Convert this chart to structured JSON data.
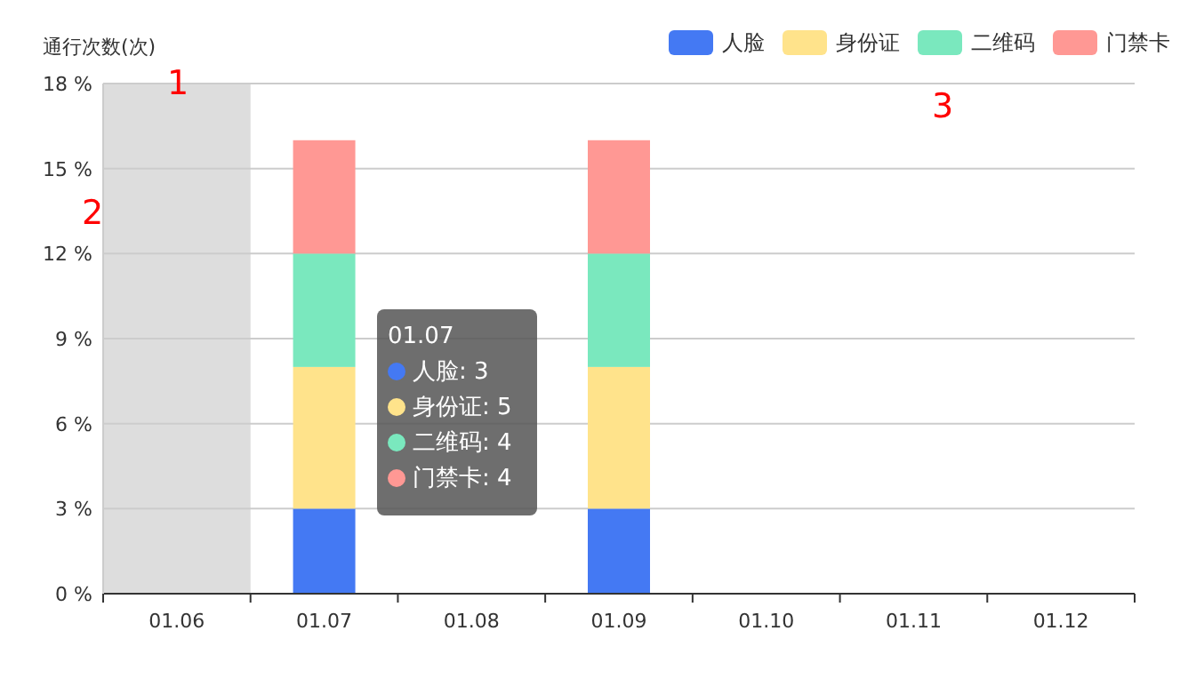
{
  "chart_data": {
    "type": "bar",
    "stacked": true,
    "ylabel": "通行次数(次)",
    "categories": [
      "01.06",
      "01.07",
      "01.08",
      "01.09",
      "01.10",
      "01.11",
      "01.12"
    ],
    "series": [
      {
        "name": "人脸",
        "color": "#4479f3",
        "values": [
          0,
          3,
          0,
          3,
          0,
          0,
          0
        ]
      },
      {
        "name": "身份证",
        "color": "#ffe38b",
        "values": [
          0,
          5,
          0,
          5,
          0,
          0,
          0
        ]
      },
      {
        "name": "二维码",
        "color": "#7ae8be",
        "values": [
          0,
          4,
          0,
          4,
          0,
          0,
          0
        ]
      },
      {
        "name": "门禁卡",
        "color": "#ff9894",
        "values": [
          0,
          4,
          0,
          4,
          0,
          0,
          0
        ]
      }
    ],
    "ylim": [
      0,
      18
    ],
    "yticks": [
      {
        "value": 0,
        "label": "0 %"
      },
      {
        "value": 3,
        "label": "3 %"
      },
      {
        "value": 6,
        "label": "6 %"
      },
      {
        "value": 9,
        "label": "9 %"
      },
      {
        "value": 12,
        "label": "12 %"
      },
      {
        "value": 15,
        "label": "15 %"
      },
      {
        "value": 18,
        "label": "18 %"
      }
    ],
    "grid": "y",
    "legend": "top right",
    "bands": [
      {
        "axis": "x",
        "from": "01.06",
        "to": "01.06",
        "color": "#dddddd"
      }
    ],
    "annotations": [
      "1",
      "2",
      "3",
      "01.07",
      "人脸: 3",
      "身份证: 5",
      "二维码: 4",
      "门禁卡: 4"
    ]
  }
}
